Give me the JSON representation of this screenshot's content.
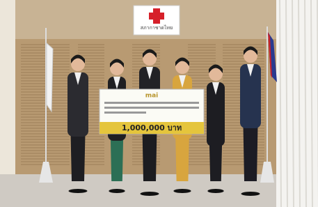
{
  "sign": {
    "label": "สภากาชาดไทย"
  },
  "cheque": {
    "logo": "mai",
    "amount": "1,000,000 บาท"
  }
}
